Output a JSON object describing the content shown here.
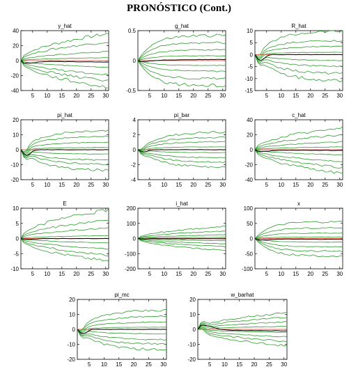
{
  "figure_title": "PRONÓSTICO (Cont.)",
  "colors": {
    "band": "#2e9a2e",
    "mean": "#000000",
    "zero": "#e03020",
    "axis": "#000000"
  },
  "chart_data": [
    {
      "type": "line",
      "title": "y_hat",
      "xticks": [
        5,
        10,
        15,
        20,
        25,
        30
      ],
      "xlim": [
        1,
        31
      ],
      "ylim": [
        -40,
        40
      ],
      "yticks": [
        -40,
        -20,
        0,
        20,
        40
      ],
      "grid": false,
      "bands_end": [
        36,
        25,
        12,
        4,
        -9,
        -19,
        -27,
        -36
      ],
      "mean_end": -2,
      "mean_dip": -3,
      "shape": "sqrt"
    },
    {
      "type": "line",
      "title": "g_hat",
      "xticks": [
        5,
        10,
        15,
        20,
        25,
        30
      ],
      "xlim": [
        1,
        31
      ],
      "ylim": [
        -0.5,
        0.5
      ],
      "yticks": [
        -0.5,
        0,
        0.5
      ],
      "grid": false,
      "bands_end": [
        0.42,
        0.3,
        0.18,
        0.08,
        -0.08,
        -0.18,
        -0.3,
        -0.42
      ],
      "mean_end": 0.02,
      "mean_dip": -0.02,
      "shape": "fast"
    },
    {
      "type": "line",
      "title": "R_hat",
      "xticks": [
        5,
        10,
        15,
        20,
        25,
        30
      ],
      "xlim": [
        1,
        31
      ],
      "ylim": [
        -15,
        10
      ],
      "yticks": [
        -15,
        -10,
        -5,
        0,
        5,
        10
      ],
      "grid": false,
      "bands_end": [
        10,
        6,
        3.5,
        1,
        -2.5,
        -5,
        -8,
        -11
      ],
      "mean_end": 0,
      "mean_dip": -2.5,
      "shape": "dip"
    },
    {
      "type": "line",
      "title": "pi_hat",
      "xticks": [
        5,
        10,
        15,
        20,
        25,
        30
      ],
      "xlim": [
        1,
        31
      ],
      "ylim": [
        -20,
        20
      ],
      "yticks": [
        -20,
        -10,
        0,
        10,
        20
      ],
      "grid": false,
      "bands_end": [
        13,
        9,
        5,
        1.5,
        -3,
        -7,
        -10,
        -14
      ],
      "mean_end": 0,
      "mean_dip": -4,
      "shape": "dip"
    },
    {
      "type": "line",
      "title": "pi_bar",
      "xticks": [
        5,
        10,
        15,
        20,
        25,
        30
      ],
      "xlim": [
        1,
        31
      ],
      "ylim": [
        -4,
        4
      ],
      "yticks": [
        -4,
        -2,
        0,
        2,
        4
      ],
      "grid": false,
      "bands_end": [
        2.4,
        1.7,
        1.1,
        0.4,
        -0.4,
        -1.1,
        -1.7,
        -2.4
      ],
      "mean_end": 0,
      "mean_dip": -0.3,
      "shape": "dip"
    },
    {
      "type": "line",
      "title": "c_hat",
      "xticks": [
        5,
        10,
        15,
        20,
        25,
        30
      ],
      "xlim": [
        1,
        31
      ],
      "ylim": [
        -40,
        40
      ],
      "yticks": [
        -40,
        -20,
        0,
        20,
        40
      ],
      "grid": false,
      "bands_end": [
        30,
        20,
        11,
        4,
        -7,
        -16,
        -24,
        -32
      ],
      "mean_end": -1,
      "mean_dip": -2,
      "shape": "sqrt"
    },
    {
      "type": "line",
      "title": "E",
      "xticks": [
        5,
        10,
        15,
        20,
        25,
        30
      ],
      "xlim": [
        1,
        31
      ],
      "ylim": [
        -10,
        10
      ],
      "yticks": [
        -10,
        -5,
        0,
        5,
        10
      ],
      "grid": false,
      "bands_end": [
        9.5,
        6,
        3.5,
        1,
        -1.5,
        -3.5,
        -5.5,
        -7.5
      ],
      "mean_end": 0,
      "mean_dip": -0.3,
      "shape": "sqrt"
    },
    {
      "type": "line",
      "title": "i_hat",
      "xticks": [
        5,
        10,
        15,
        20,
        25,
        30
      ],
      "xlim": [
        1,
        31
      ],
      "ylim": [
        -200,
        200
      ],
      "yticks": [
        -200,
        -100,
        0,
        100,
        200
      ],
      "grid": false,
      "bands_end": [
        80,
        50,
        25,
        8,
        -15,
        -35,
        -55,
        -80
      ],
      "mean_end": -2,
      "mean_dip": -3,
      "shape": "sqrt"
    },
    {
      "type": "line",
      "title": "x",
      "xticks": [
        5,
        10,
        15,
        20,
        25,
        30
      ],
      "xlim": [
        1,
        31
      ],
      "ylim": [
        -100,
        100
      ],
      "yticks": [
        -100,
        -50,
        0,
        50,
        100
      ],
      "grid": false,
      "bands_end": [
        55,
        35,
        18,
        5,
        -12,
        -27,
        -42,
        -58
      ],
      "mean_end": -3,
      "mean_dip": -4,
      "shape": "fast"
    },
    {
      "type": "line",
      "title": "pi_mc",
      "xticks": [
        5,
        10,
        15,
        20,
        25,
        30
      ],
      "xlim": [
        1,
        31
      ],
      "ylim": [
        -20,
        20
      ],
      "yticks": [
        -20,
        -10,
        0,
        10,
        20
      ],
      "grid": false,
      "bands_end": [
        13,
        9,
        5,
        1.5,
        -3,
        -7,
        -10,
        -14
      ],
      "mean_end": 0,
      "mean_dip": -3,
      "shape": "dip"
    },
    {
      "type": "line",
      "title": "w_barhat",
      "xticks": [
        5,
        10,
        15,
        20,
        25,
        30
      ],
      "xlim": [
        1,
        31
      ],
      "ylim": [
        -20,
        20
      ],
      "yticks": [
        -20,
        -10,
        0,
        10,
        20
      ],
      "grid": false,
      "bands_end": [
        11,
        8,
        5,
        2,
        -2,
        -5,
        -8,
        -11
      ],
      "mean_end": -1,
      "mean_dip": 3,
      "shape": "bump"
    }
  ]
}
